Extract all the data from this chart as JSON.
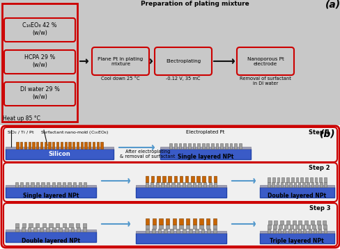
{
  "title_a": "(a)",
  "title_b": "(b)",
  "bg_color": "#c8c8c8",
  "red_border": "#cc0000",
  "blue_silicon": "#3a5bc7",
  "blue_silicon_edge": "#2244aa",
  "orange_surfactant": "#c86400",
  "orange_edge": "#7a3c00",
  "gray_pt": "#a0a0a0",
  "gray_pt_edge": "#666666",
  "thin_layer_color": "#a0a0b8",
  "thin_layer_edge": "#808090",
  "arrow_color": "#5599cc",
  "black": "#111111",
  "white": "#ffffff",
  "panel_bg": "#e8e8e8",
  "ingredients": [
    "C₁₆EO₈ 42 %\n(w/w)",
    "HCPA 29 %\n(w/w)",
    "DI water 29 %\n(w/w)"
  ],
  "process_boxes": [
    "Plane Pt in plating\nmixture",
    "Electroplating",
    "Nanoporous Pt\nelectrode"
  ],
  "process_captions": [
    "Cool down 25 °C",
    "-0.12 V, 35 mC",
    "Removal of surfactant\nin DI water"
  ],
  "prep_label": "Preparation of plating mixture",
  "heat_label": "Heat up 85 °C"
}
